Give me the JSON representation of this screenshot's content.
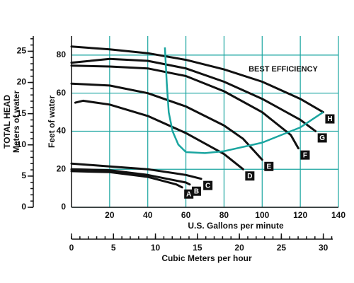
{
  "chart_data": {
    "type": "line",
    "x_label": "U.S. Gallons per minute",
    "y_label": "Feet of water",
    "xlim": [
      0,
      140
    ],
    "xticks": [
      20,
      40,
      60,
      80,
      100,
      120,
      140
    ],
    "ylim": [
      0,
      90
    ],
    "yticks": [
      0,
      20,
      40,
      60,
      80
    ],
    "grid": true,
    "grid_color": "#1aa5a0",
    "y2_title": "TOTAL HEAD",
    "y2_label": "Meters of water",
    "y2lim": [
      0,
      27.43
    ],
    "y2ticks": [
      0,
      5,
      10,
      15,
      20,
      25
    ],
    "y2_minor_step": 1,
    "x2_label": "Cubic Meters per hour",
    "x2lim": [
      0,
      31.8
    ],
    "x2ticks": [
      0,
      5,
      10,
      15,
      20,
      25,
      30
    ],
    "x2_minor_step": 1,
    "series": [
      {
        "name": "A",
        "color": "#111111",
        "x": [
          0,
          20,
          40,
          55,
          58
        ],
        "values": [
          19,
          18.5,
          16,
          12,
          10.5
        ]
      },
      {
        "name": "B",
        "color": "#111111",
        "x": [
          0,
          20,
          40,
          60,
          62
        ],
        "values": [
          20,
          19.5,
          17,
          13,
          12
        ]
      },
      {
        "name": "C",
        "color": "#111111",
        "x": [
          0,
          20,
          40,
          60,
          68
        ],
        "values": [
          23,
          21.5,
          20,
          17,
          15
        ]
      },
      {
        "name": "D",
        "color": "#111111",
        "x": [
          2,
          6,
          20,
          40,
          60,
          80,
          90
        ],
        "values": [
          55,
          56,
          54,
          48,
          39,
          28,
          20
        ]
      },
      {
        "name": "E",
        "color": "#111111",
        "x": [
          0,
          20,
          40,
          60,
          80,
          90,
          100
        ],
        "values": [
          65,
          64,
          60,
          53,
          43,
          36,
          25
        ]
      },
      {
        "name": "F",
        "color": "#111111",
        "x": [
          0,
          20,
          40,
          60,
          80,
          100,
          115,
          119
        ],
        "values": [
          74.5,
          74,
          73,
          69,
          61,
          50,
          38,
          31
        ]
      },
      {
        "name": "G",
        "color": "#111111",
        "x": [
          0,
          20,
          40,
          60,
          80,
          100,
          120,
          128
        ],
        "values": [
          76,
          78,
          77,
          73,
          66,
          57,
          46,
          40
        ]
      },
      {
        "name": "H",
        "color": "#111111",
        "x": [
          0,
          20,
          40,
          60,
          80,
          100,
          120,
          132
        ],
        "values": [
          84.5,
          83,
          81,
          77.5,
          72.5,
          66,
          57,
          50
        ]
      }
    ],
    "efficiency_curve": {
      "name": "BEST EFFICIENCY",
      "color": "#1aa5a0",
      "x": [
        49,
        50,
        51,
        53,
        56,
        60,
        70,
        80,
        100,
        120,
        132
      ],
      "values": [
        84,
        65,
        50,
        40,
        33,
        29,
        28.5,
        29.5,
        34,
        42,
        50
      ]
    }
  }
}
